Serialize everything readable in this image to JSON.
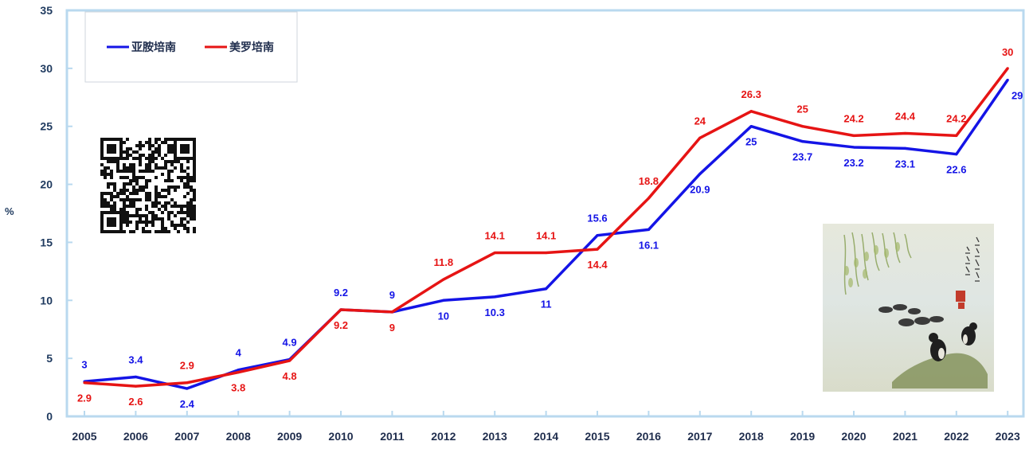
{
  "chart_data": {
    "type": "line",
    "title": "",
    "xlabel": "",
    "ylabel": "%",
    "ylim": [
      0,
      35
    ],
    "yticks": [
      0,
      5,
      10,
      15,
      20,
      25,
      30,
      35
    ],
    "categories": [
      "2005",
      "2006",
      "2007",
      "2008",
      "2009",
      "2010",
      "2011",
      "2012",
      "2013",
      "2014",
      "2015",
      "2016",
      "2017",
      "2018",
      "2019",
      "2020",
      "2021",
      "2022",
      "2023"
    ],
    "series": [
      {
        "name": "亚胺培南",
        "color": "#1414e6",
        "values": [
          3,
          3.4,
          2.4,
          4,
          4.9,
          9.2,
          9,
          10,
          10.3,
          11,
          15.6,
          16.1,
          20.9,
          25,
          23.7,
          23.2,
          23.1,
          22.6,
          29
        ]
      },
      {
        "name": "美罗培南",
        "color": "#e61414",
        "values": [
          2.9,
          2.6,
          2.9,
          3.8,
          4.8,
          9.2,
          9,
          11.8,
          14.1,
          14.1,
          14.4,
          18.8,
          24,
          26.3,
          25,
          24.2,
          24.4,
          24.2,
          30
        ]
      }
    ],
    "legend_position": "top-left",
    "grid": false
  },
  "decorations": {
    "qr_code": "qr-code-image",
    "painting": "ink-painting-willow-ducks"
  }
}
